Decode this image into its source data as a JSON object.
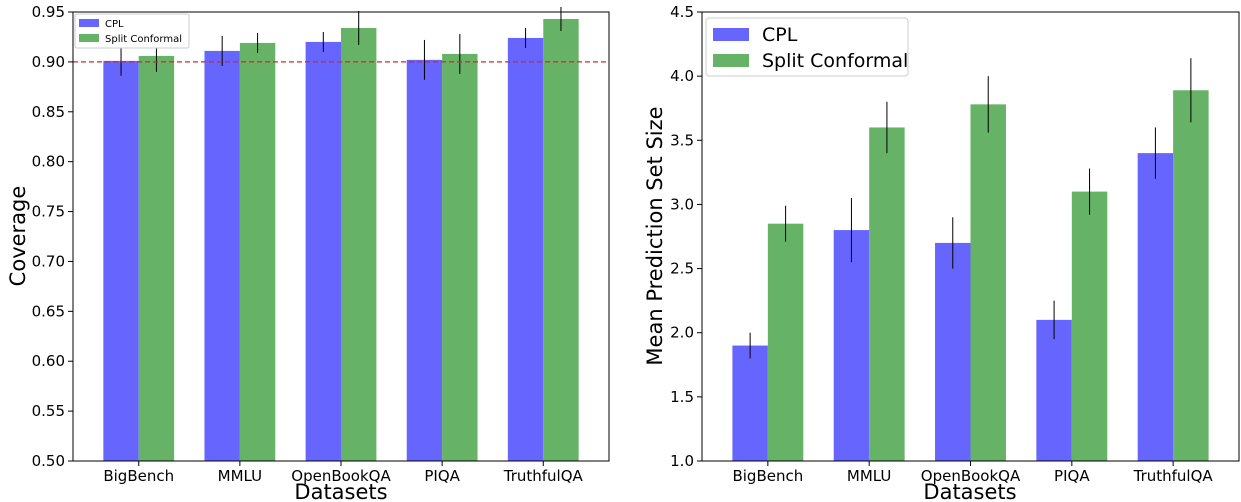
{
  "colors": {
    "cpl": "#6666ff",
    "split": "#66b266",
    "threshold": "#d62728",
    "errorbar": "#000000"
  },
  "chart_data": [
    {
      "type": "bar",
      "title": "",
      "xlabel": "Datasets",
      "ylabel": "Coverage",
      "categories": [
        "BigBench",
        "MMLU",
        "OpenBookQA",
        "PIQA",
        "TruthfulQA"
      ],
      "series": [
        {
          "name": "CPL",
          "values": [
            0.901,
            0.911,
            0.92,
            0.902,
            0.924
          ],
          "errors": [
            0.015,
            0.015,
            0.01,
            0.02,
            0.01
          ]
        },
        {
          "name": "Split Conformal",
          "values": [
            0.906,
            0.919,
            0.934,
            0.908,
            0.943
          ],
          "errors": [
            0.016,
            0.01,
            0.017,
            0.02,
            0.012
          ]
        }
      ],
      "ylim": [
        0.5,
        0.95
      ],
      "yticks": [
        "0.50",
        "0.55",
        "0.60",
        "0.65",
        "0.70",
        "0.75",
        "0.80",
        "0.85",
        "0.90",
        "0.95"
      ],
      "reference_line": {
        "value": 0.9,
        "style": "dashed",
        "color": "#d62728"
      },
      "grid": false,
      "legend": "top-left"
    },
    {
      "type": "bar",
      "title": "",
      "xlabel": "Datasets",
      "ylabel": "Mean Prediction Set Size",
      "categories": [
        "BigBench",
        "MMLU",
        "OpenBookQA",
        "PIQA",
        "TruthfulQA"
      ],
      "series": [
        {
          "name": "CPL",
          "values": [
            1.9,
            2.8,
            2.7,
            2.1,
            3.4
          ],
          "errors": [
            0.1,
            0.25,
            0.2,
            0.15,
            0.2
          ]
        },
        {
          "name": "Split Conformal",
          "values": [
            2.85,
            3.6,
            3.78,
            3.1,
            3.89
          ],
          "errors": [
            0.14,
            0.2,
            0.22,
            0.18,
            0.25
          ]
        }
      ],
      "ylim": [
        1.0,
        4.5
      ],
      "yticks": [
        "1.0",
        "1.5",
        "2.0",
        "2.5",
        "3.0",
        "3.5",
        "4.0",
        "4.5"
      ],
      "grid": false,
      "legend": "top-left"
    }
  ]
}
